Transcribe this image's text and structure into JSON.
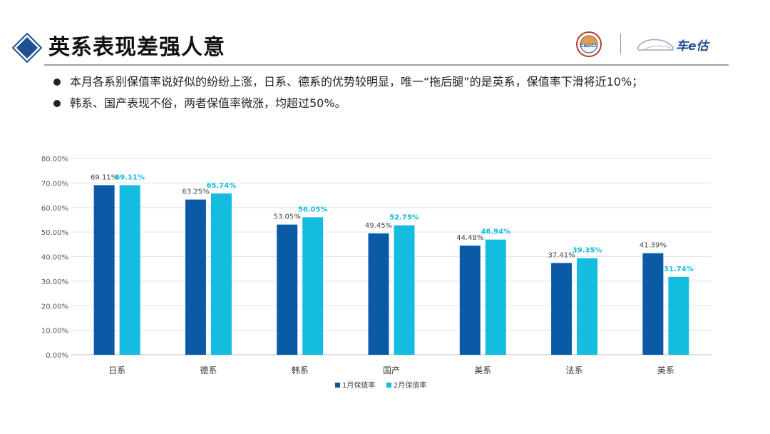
{
  "header": {
    "title": "英系表现差强人意",
    "logos": {
      "cadcc": "CADCC",
      "brand": "车e估"
    }
  },
  "bullets": [
    "本月各系别保值率说好似的纷纷上涨，日系、德系的优势较明显，唯一“拖后腿”的是英系，保值率下滑将近10%；",
    "韩系、国产表现不俗，两者保值率微涨，均超过50%。"
  ],
  "colors": {
    "series1": "#0b5aa6",
    "series2": "#14bde0",
    "accent": "#1d4f91"
  },
  "chart_data": {
    "type": "bar",
    "categories": [
      "日系",
      "德系",
      "韩系",
      "国产",
      "美系",
      "法系",
      "英系"
    ],
    "series": [
      {
        "name": "1月保值率",
        "values": [
          69.11,
          63.25,
          53.05,
          49.45,
          44.48,
          37.41,
          41.39
        ],
        "labels": [
          "69.11%",
          "63.25%",
          "53.05%",
          "49.45%",
          "44.48%",
          "37.41%",
          "41.39%"
        ]
      },
      {
        "name": "2月保值率",
        "values": [
          69.11,
          65.74,
          56.05,
          52.75,
          46.94,
          39.35,
          31.74
        ],
        "labels": [
          "69.11%",
          "65.74%",
          "56.05%",
          "52.75%",
          "46.94%",
          "39.35%",
          "31.74%"
        ]
      }
    ],
    "ylim": [
      0,
      80
    ],
    "yticks": [
      "0.00%",
      "10.00%",
      "20.00%",
      "30.00%",
      "40.00%",
      "50.00%",
      "60.00%",
      "70.00%",
      "80.00%"
    ],
    "grid": true,
    "legend": "bottom-center"
  }
}
